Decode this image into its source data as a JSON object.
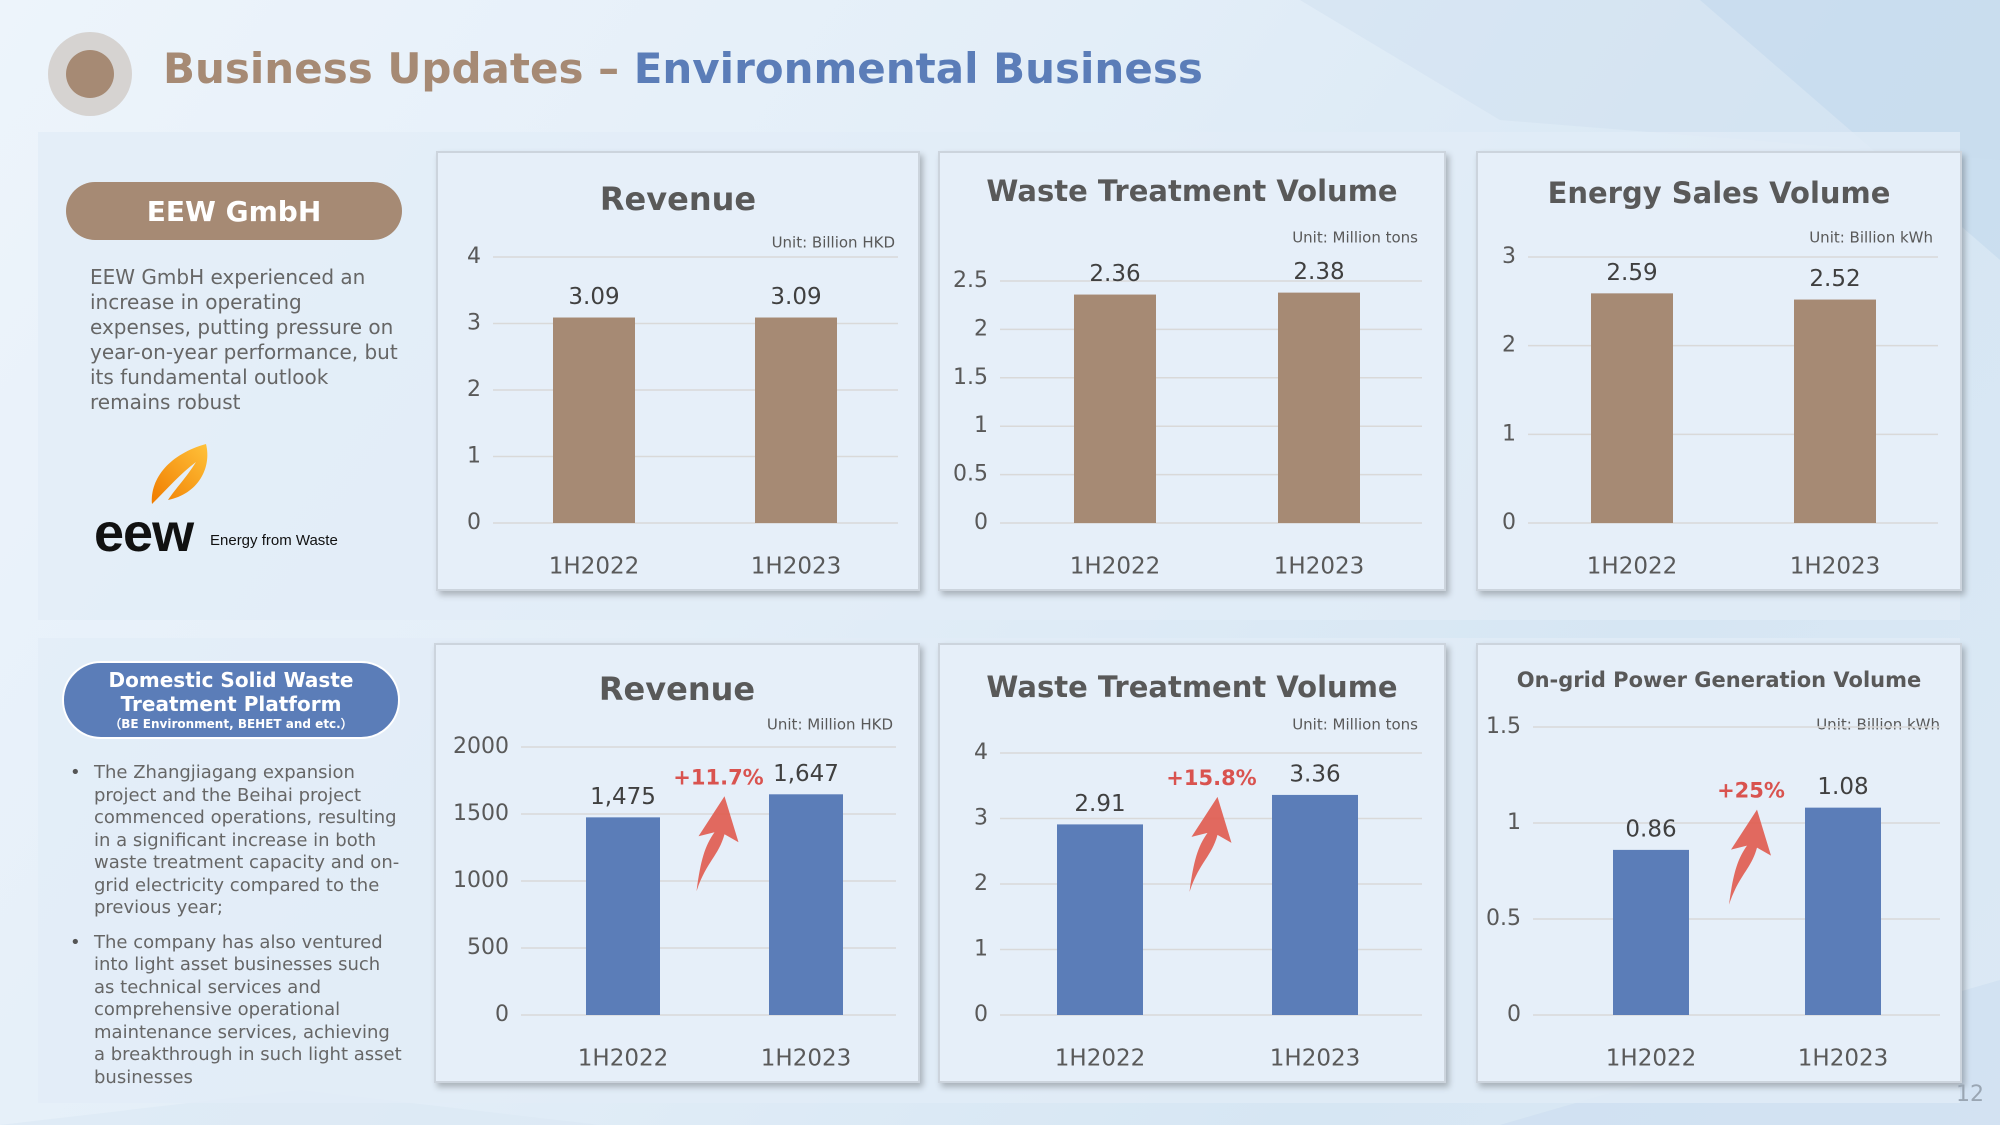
{
  "header": {
    "title_part1": "Business Updates – ",
    "title_part2": "Environmental Business"
  },
  "colors": {
    "brown": "#a68a74",
    "blue": "#5b7db8",
    "red": "#d9534f",
    "axis_text": "#555555"
  },
  "eew": {
    "label": "EEW GmbH",
    "description": "EEW GmbH experienced an increase in operating expenses, putting pressure on year-on-year performance, but its fundamental outlook remains robust",
    "logo_text": "eew",
    "logo_tagline": "Energy from Waste"
  },
  "domestic": {
    "label_line1": "Domestic Solid Waste",
    "label_line2": "Treatment Platform",
    "label_sub": "（BE Environment, BEHET and etc.）",
    "bullets": [
      "The Zhangjiagang expansion project and the Beihai project commenced operations, resulting in a significant increase in both waste treatment capacity and on-grid electricity compared to the previous year;",
      " The company has also ventured into light asset businesses such as technical services and comprehensive operational maintenance services, achieving a breakthrough in such light asset businesses"
    ]
  },
  "page_number": "12",
  "chart_data": [
    {
      "type": "bar",
      "title": "Revenue",
      "unit": "Unit: Billion HKD",
      "categories": [
        "1H2022",
        "1H2023"
      ],
      "values": [
        3.09,
        3.09
      ],
      "value_labels": [
        "3.09",
        "3.09"
      ],
      "ylim": [
        0,
        4
      ],
      "yticks": [
        "0",
        "1",
        "2",
        "3",
        "4"
      ],
      "color": "#a68a74",
      "growth": ""
    },
    {
      "type": "bar",
      "title": "Waste Treatment Volume",
      "unit": "Unit: Million tons",
      "categories": [
        "1H2022",
        "1H2023"
      ],
      "values": [
        2.36,
        2.38
      ],
      "value_labels": [
        "2.36",
        "2.38"
      ],
      "ylim": [
        0,
        2.5
      ],
      "yticks": [
        "0",
        "0.5",
        "1",
        "1.5",
        "2",
        "2.5"
      ],
      "color": "#a68a74",
      "growth": ""
    },
    {
      "type": "bar",
      "title": "Energy Sales Volume",
      "unit": "Unit: Billion kWh",
      "categories": [
        "1H2022",
        "1H2023"
      ],
      "values": [
        2.59,
        2.52
      ],
      "value_labels": [
        "2.59",
        "2.52"
      ],
      "ylim": [
        0,
        3
      ],
      "yticks": [
        "0",
        "1",
        "2",
        "3"
      ],
      "color": "#a68a74",
      "growth": ""
    },
    {
      "type": "bar",
      "title": "Revenue",
      "unit": "Unit: Million HKD",
      "categories": [
        "1H2022",
        "1H2023"
      ],
      "values": [
        1475,
        1647
      ],
      "value_labels": [
        "1,475",
        "1,647"
      ],
      "ylim": [
        0,
        2000
      ],
      "yticks": [
        "0",
        "500",
        "1000",
        "1500",
        "2000"
      ],
      "color": "#5b7db8",
      "growth": "+11.7%"
    },
    {
      "type": "bar",
      "title": "Waste Treatment Volume",
      "unit": "Unit: Million tons",
      "categories": [
        "1H2022",
        "1H2023"
      ],
      "values": [
        2.91,
        3.36
      ],
      "value_labels": [
        "2.91",
        "3.36"
      ],
      "ylim": [
        0,
        4
      ],
      "yticks": [
        "0",
        "1",
        "2",
        "3",
        "4"
      ],
      "color": "#5b7db8",
      "growth": "+15.8%"
    },
    {
      "type": "bar",
      "title": "On-grid Power Generation Volume",
      "unit": "Unit: Billion kWh",
      "categories": [
        "1H2022",
        "1H2023"
      ],
      "values": [
        0.86,
        1.08
      ],
      "value_labels": [
        "0.86",
        "1.08"
      ],
      "ylim": [
        0,
        1.5
      ],
      "yticks": [
        "0",
        "0.5",
        "1",
        "1.5"
      ],
      "color": "#5b7db8",
      "growth": "+25%"
    }
  ]
}
